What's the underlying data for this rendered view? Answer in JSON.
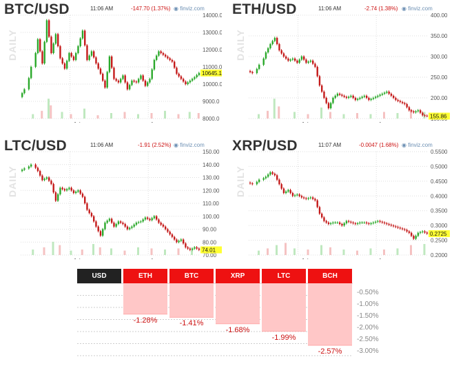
{
  "colors": {
    "up": "#2aa82a",
    "down": "#c41a1a",
    "vol_up": "#bfe8bf",
    "vol_down": "#f5c2c2",
    "neg_bar": "#ffc7c7",
    "header_red": "#ee1111",
    "header_dark": "#222222"
  },
  "panels": [
    {
      "title": "BTC/USD",
      "time": "11:06 AM",
      "change": "-147.70 (1.37%)",
      "brand": "finviz.com",
      "daily": "DAILY",
      "last_label": "10645.1",
      "x_labels": [
        "Jul",
        "Aug"
      ],
      "ylim": [
        8000,
        14000
      ],
      "y_ticks": [
        "14000.0",
        "13000.0",
        "12000.0",
        "11000.0",
        "10000.0",
        "9000.0",
        "8000.0"
      ],
      "path": [
        [
          0,
          9250
        ],
        [
          3,
          9700
        ],
        [
          6,
          11000
        ],
        [
          8,
          12600
        ],
        [
          10,
          11200
        ],
        [
          12,
          13700
        ],
        [
          14,
          11800
        ],
        [
          16,
          12900
        ],
        [
          18,
          11500
        ],
        [
          20,
          10900
        ],
        [
          22,
          11800
        ],
        [
          24,
          11400
        ],
        [
          26,
          12200
        ],
        [
          28,
          13100
        ],
        [
          30,
          11400
        ],
        [
          32,
          11900
        ],
        [
          34,
          11200
        ],
        [
          36,
          10600
        ],
        [
          38,
          9800
        ],
        [
          40,
          11600
        ],
        [
          42,
          10300
        ],
        [
          44,
          10100
        ],
        [
          46,
          10500
        ],
        [
          48,
          9700
        ],
        [
          50,
          10200
        ],
        [
          52,
          10100
        ],
        [
          54,
          10500
        ],
        [
          56,
          9900
        ],
        [
          58,
          10300
        ],
        [
          60,
          11400
        ],
        [
          62,
          11900
        ],
        [
          64,
          11700
        ],
        [
          66,
          11500
        ],
        [
          68,
          11300
        ],
        [
          70,
          10600
        ],
        [
          72,
          10300
        ],
        [
          74,
          10000
        ],
        [
          76,
          10200
        ],
        [
          78,
          10400
        ],
        [
          80,
          10645
        ]
      ],
      "volume": [
        [
          5,
          0.2
        ],
        [
          9,
          0.35
        ],
        [
          12,
          0.9
        ],
        [
          13,
          0.6
        ],
        [
          18,
          0.3
        ],
        [
          22,
          0.2
        ],
        [
          28,
          0.45
        ],
        [
          34,
          0.15
        ],
        [
          40,
          0.25
        ],
        [
          46,
          0.3
        ],
        [
          52,
          0.2
        ],
        [
          58,
          0.25
        ],
        [
          64,
          0.35
        ],
        [
          70,
          0.2
        ],
        [
          75,
          0.3
        ],
        [
          79,
          0.25
        ]
      ]
    },
    {
      "title": "ETH/USD",
      "time": "11:06 AM",
      "change": "-2.74 (1.38%)",
      "brand": "finviz.com",
      "daily": "DAILY",
      "last_label": "155.86",
      "x_labels": [
        "Jul",
        "Aug"
      ],
      "ylim": [
        150,
        400
      ],
      "y_ticks": [
        "400.00",
        "350.00",
        "300.00",
        "250.00",
        "200.00",
        "150.00"
      ],
      "path": [
        [
          0,
          265
        ],
        [
          3,
          260
        ],
        [
          6,
          280
        ],
        [
          8,
          310
        ],
        [
          10,
          330
        ],
        [
          12,
          345
        ],
        [
          14,
          315
        ],
        [
          16,
          300
        ],
        [
          18,
          290
        ],
        [
          20,
          295
        ],
        [
          22,
          285
        ],
        [
          24,
          300
        ],
        [
          26,
          285
        ],
        [
          28,
          290
        ],
        [
          30,
          275
        ],
        [
          32,
          230
        ],
        [
          34,
          200
        ],
        [
          36,
          175
        ],
        [
          38,
          200
        ],
        [
          40,
          210
        ],
        [
          42,
          205
        ],
        [
          44,
          200
        ],
        [
          46,
          205
        ],
        [
          48,
          195
        ],
        [
          50,
          200
        ],
        [
          52,
          205
        ],
        [
          54,
          195
        ],
        [
          56,
          200
        ],
        [
          58,
          205
        ],
        [
          60,
          210
        ],
        [
          62,
          215
        ],
        [
          64,
          205
        ],
        [
          66,
          195
        ],
        [
          68,
          190
        ],
        [
          70,
          185
        ],
        [
          72,
          170
        ],
        [
          74,
          165
        ],
        [
          76,
          170
        ],
        [
          78,
          158
        ],
        [
          80,
          156
        ]
      ],
      "volume": [
        [
          4,
          0.2
        ],
        [
          8,
          0.35
        ],
        [
          11,
          0.9
        ],
        [
          13,
          0.55
        ],
        [
          20,
          0.3
        ],
        [
          26,
          0.2
        ],
        [
          32,
          0.5
        ],
        [
          36,
          0.3
        ],
        [
          42,
          0.2
        ],
        [
          48,
          0.25
        ],
        [
          54,
          0.2
        ],
        [
          60,
          0.3
        ],
        [
          66,
          0.25
        ],
        [
          72,
          0.4
        ],
        [
          78,
          0.3
        ]
      ]
    },
    {
      "title": "LTC/USD",
      "time": "11:06 AM",
      "change": "-1.91 (2.52%)",
      "brand": "finviz.com",
      "daily": "DAILY",
      "last_label": "74.01",
      "x_labels": [
        "Jul",
        "Aug"
      ],
      "ylim": [
        70,
        150
      ],
      "y_ticks": [
        "150.00",
        "140.00",
        "130.00",
        "120.00",
        "110.00",
        "100.00",
        "90.00",
        "80.00",
        "70.00"
      ],
      "path": [
        [
          0,
          135
        ],
        [
          3,
          137
        ],
        [
          6,
          140
        ],
        [
          8,
          135
        ],
        [
          10,
          128
        ],
        [
          12,
          130
        ],
        [
          14,
          125
        ],
        [
          16,
          112
        ],
        [
          18,
          122
        ],
        [
          20,
          120
        ],
        [
          22,
          122
        ],
        [
          24,
          118
        ],
        [
          26,
          120
        ],
        [
          28,
          115
        ],
        [
          30,
          105
        ],
        [
          32,
          100
        ],
        [
          34,
          92
        ],
        [
          36,
          85
        ],
        [
          38,
          95
        ],
        [
          40,
          98
        ],
        [
          42,
          92
        ],
        [
          44,
          96
        ],
        [
          46,
          94
        ],
        [
          48,
          90
        ],
        [
          50,
          92
        ],
        [
          52,
          95
        ],
        [
          54,
          96
        ],
        [
          56,
          99
        ],
        [
          58,
          97
        ],
        [
          60,
          100
        ],
        [
          62,
          95
        ],
        [
          64,
          92
        ],
        [
          66,
          88
        ],
        [
          68,
          84
        ],
        [
          70,
          80
        ],
        [
          72,
          82
        ],
        [
          74,
          76
        ],
        [
          76,
          74
        ],
        [
          78,
          76
        ],
        [
          80,
          74
        ]
      ],
      "volume": [
        [
          5,
          0.25
        ],
        [
          10,
          0.35
        ],
        [
          14,
          0.6
        ],
        [
          17,
          0.45
        ],
        [
          22,
          0.2
        ],
        [
          27,
          0.25
        ],
        [
          32,
          0.5
        ],
        [
          35,
          0.35
        ],
        [
          40,
          0.3
        ],
        [
          46,
          0.2
        ],
        [
          52,
          0.35
        ],
        [
          58,
          0.3
        ],
        [
          64,
          0.25
        ],
        [
          70,
          0.3
        ],
        [
          76,
          0.2
        ]
      ]
    },
    {
      "title": "XRP/USD",
      "time": "11:07 AM",
      "change": "-0.0047 (1.68%)",
      "brand": "finviz.com",
      "daily": "DAILY",
      "last_label": "0.2725",
      "x_labels": [
        "Jul",
        "Aug"
      ],
      "ylim": [
        0.2,
        0.55
      ],
      "y_ticks": [
        "0.5500",
        "0.5000",
        "0.4500",
        "0.4000",
        "0.3500",
        "0.3000",
        "0.2500",
        "0.2000"
      ],
      "path": [
        [
          0,
          0.445
        ],
        [
          3,
          0.44
        ],
        [
          6,
          0.455
        ],
        [
          8,
          0.465
        ],
        [
          10,
          0.48
        ],
        [
          12,
          0.47
        ],
        [
          14,
          0.44
        ],
        [
          16,
          0.41
        ],
        [
          18,
          0.42
        ],
        [
          20,
          0.4
        ],
        [
          22,
          0.405
        ],
        [
          24,
          0.395
        ],
        [
          26,
          0.39
        ],
        [
          28,
          0.395
        ],
        [
          30,
          0.385
        ],
        [
          32,
          0.34
        ],
        [
          34,
          0.315
        ],
        [
          36,
          0.305
        ],
        [
          38,
          0.31
        ],
        [
          40,
          0.31
        ],
        [
          42,
          0.3
        ],
        [
          44,
          0.315
        ],
        [
          46,
          0.31
        ],
        [
          48,
          0.305
        ],
        [
          50,
          0.31
        ],
        [
          52,
          0.31
        ],
        [
          54,
          0.305
        ],
        [
          56,
          0.31
        ],
        [
          58,
          0.315
        ],
        [
          60,
          0.31
        ],
        [
          62,
          0.305
        ],
        [
          64,
          0.3
        ],
        [
          66,
          0.295
        ],
        [
          68,
          0.29
        ],
        [
          70,
          0.285
        ],
        [
          72,
          0.275
        ],
        [
          74,
          0.255
        ],
        [
          76,
          0.275
        ],
        [
          78,
          0.28
        ],
        [
          80,
          0.2725
        ]
      ],
      "volume": [
        [
          4,
          0.2
        ],
        [
          8,
          0.3
        ],
        [
          12,
          0.45
        ],
        [
          16,
          0.55
        ],
        [
          20,
          0.3
        ],
        [
          26,
          0.25
        ],
        [
          32,
          0.45
        ],
        [
          36,
          0.35
        ],
        [
          42,
          0.25
        ],
        [
          48,
          0.2
        ],
        [
          54,
          0.3
        ],
        [
          60,
          0.25
        ],
        [
          66,
          0.3
        ],
        [
          72,
          0.45
        ],
        [
          78,
          0.5
        ]
      ]
    }
  ],
  "comparison": {
    "base_label": "USD",
    "columns": [
      {
        "label": "ETH",
        "value": -1.28,
        "text": "-1.28%"
      },
      {
        "label": "BTC",
        "value": -1.41,
        "text": "-1.41%"
      },
      {
        "label": "XRP",
        "value": -1.68,
        "text": "-1.68%"
      },
      {
        "label": "LTC",
        "value": -1.99,
        "text": "-1.99%"
      },
      {
        "label": "BCH",
        "value": -2.57,
        "text": "-2.57%"
      }
    ],
    "y_ticks": [
      "-0.50%",
      "-1.00%",
      "-1.50%",
      "-2.00%",
      "-2.50%",
      "-3.00%"
    ],
    "ylim": [
      0,
      -3.0
    ]
  },
  "chart_data": [
    {
      "type": "line",
      "title": "BTC/USD",
      "x": [
        "Jul",
        "Aug"
      ],
      "ylim": [
        8000,
        14000
      ],
      "last": 10645.1,
      "change": "-147.70 (1.37%)"
    },
    {
      "type": "line",
      "title": "ETH/USD",
      "x": [
        "Jul",
        "Aug"
      ],
      "ylim": [
        150,
        400
      ],
      "last": 155.86,
      "change": "-2.74 (1.38%)"
    },
    {
      "type": "line",
      "title": "LTC/USD",
      "x": [
        "Jul",
        "Aug"
      ],
      "ylim": [
        70,
        150
      ],
      "last": 74.01,
      "change": "-1.91 (2.52%)"
    },
    {
      "type": "line",
      "title": "XRP/USD",
      "x": [
        "Jul",
        "Aug"
      ],
      "ylim": [
        0.2,
        0.55
      ],
      "last": 0.2725,
      "change": "-0.0047 (1.68%)"
    },
    {
      "type": "bar",
      "categories": [
        "ETH",
        "BTC",
        "XRP",
        "LTC",
        "BCH"
      ],
      "values": [
        -1.28,
        -1.41,
        -1.68,
        -1.99,
        -2.57
      ],
      "ylim": [
        0,
        -3.0
      ]
    }
  ]
}
